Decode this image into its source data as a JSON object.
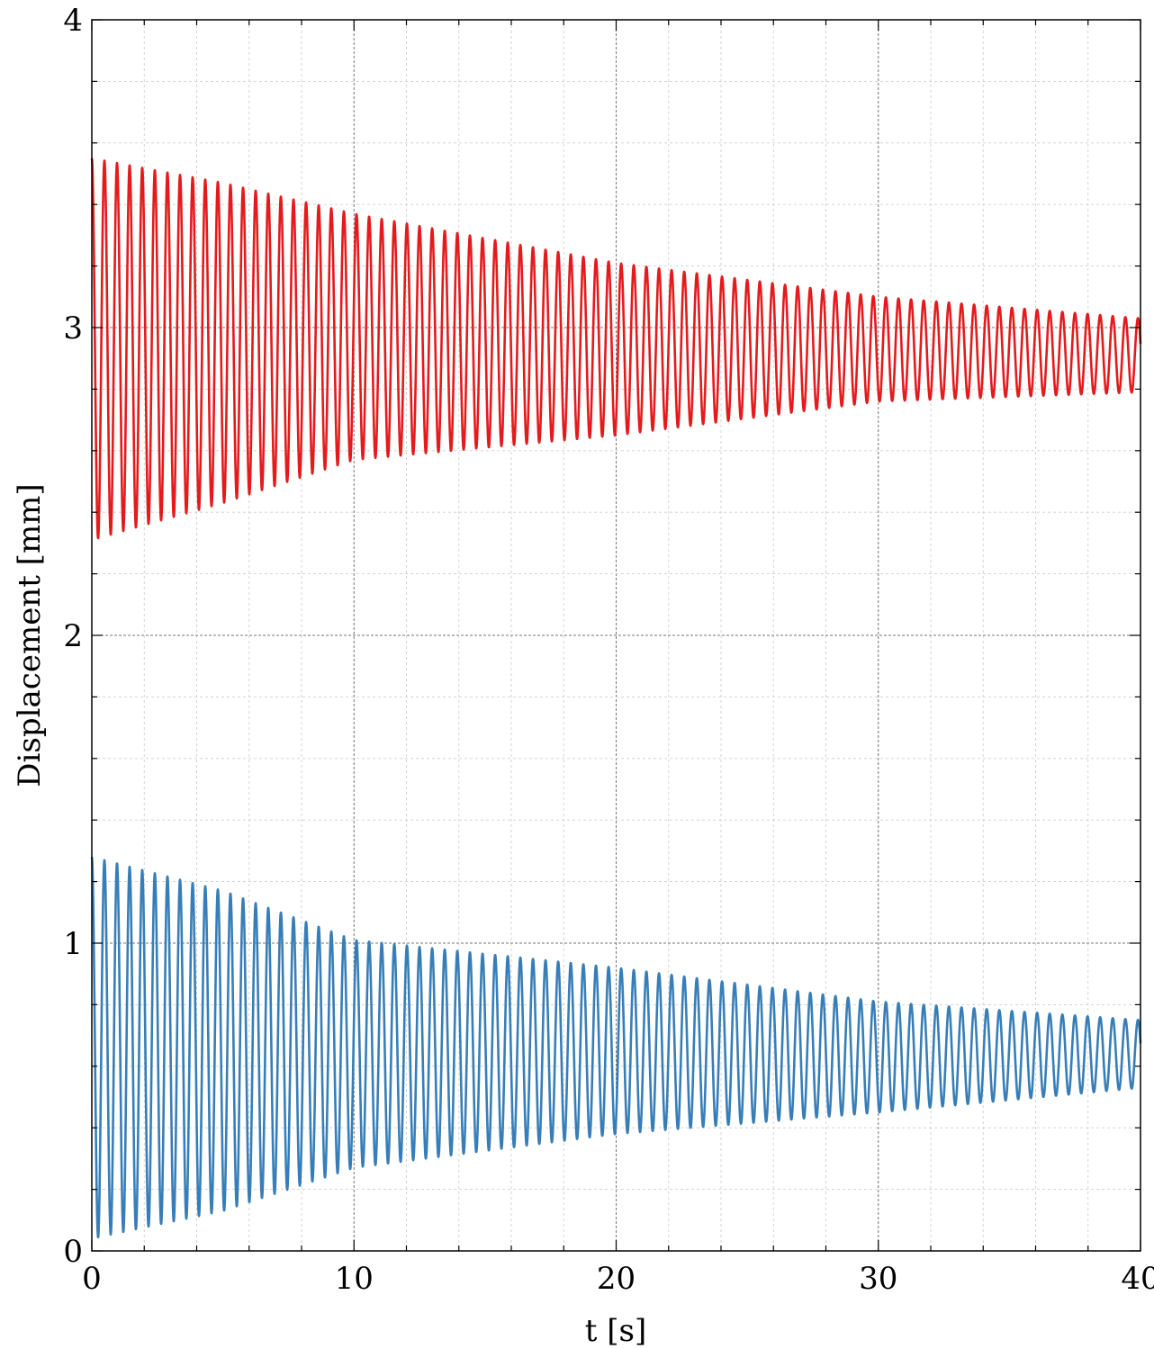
{
  "chart_data": {
    "type": "line",
    "title": "",
    "xlabel": "t [s]",
    "ylabel": "Displacement [mm]",
    "xlim": [
      0,
      40
    ],
    "ylim": [
      0,
      4
    ],
    "xticks": [
      0,
      10,
      20,
      30,
      40
    ],
    "yticks": [
      0,
      1,
      2,
      3,
      4
    ],
    "x_minor_step": 2,
    "y_minor_step": 0.2,
    "grid": true,
    "legend": "none",
    "series": [
      {
        "color": "#e41a1c",
        "center": [
          [
            0,
            2.93
          ],
          [
            10,
            2.97
          ],
          [
            20,
            2.93
          ],
          [
            30,
            2.93
          ],
          [
            40,
            2.91
          ]
        ],
        "amplitude": [
          [
            0,
            0.62
          ],
          [
            5,
            0.52
          ],
          [
            10,
            0.4
          ],
          [
            20,
            0.28
          ],
          [
            30,
            0.17
          ],
          [
            40,
            0.12
          ]
        ],
        "frequency_hz": 2.08,
        "phase_deg": 90,
        "t_start": 0.0,
        "t_end": 40.0
      },
      {
        "color": "#377eb8",
        "center": [
          [
            0,
            0.66
          ],
          [
            10,
            0.64
          ],
          [
            20,
            0.65
          ],
          [
            30,
            0.63
          ],
          [
            40,
            0.64
          ]
        ],
        "amplitude": [
          [
            0,
            0.62
          ],
          [
            5,
            0.52
          ],
          [
            10,
            0.37
          ],
          [
            20,
            0.27
          ],
          [
            30,
            0.18
          ],
          [
            40,
            0.11
          ]
        ],
        "frequency_hz": 2.08,
        "phase_deg": 90,
        "t_start": 0.0,
        "t_end": 40.0
      }
    ]
  }
}
